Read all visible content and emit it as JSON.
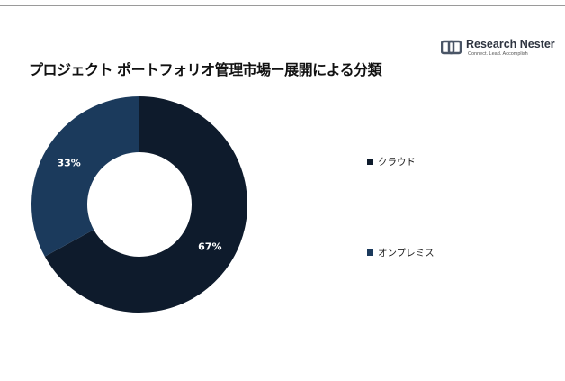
{
  "title": "プロジェクト ポートフォリオ管理市場ー展開による分類",
  "logo": {
    "name": "Research Nester",
    "tagline": "Connect. Lead. Accomplish",
    "icon": "research-nester-logo-icon"
  },
  "chart_data": {
    "type": "pie",
    "donut": true,
    "categories": [
      "クラウド",
      "オンプレミス"
    ],
    "values": [
      67,
      33
    ],
    "labels": [
      "67%",
      "33%"
    ],
    "colors": [
      "#0e1b2c",
      "#1b3a5c"
    ],
    "legend": "right"
  }
}
